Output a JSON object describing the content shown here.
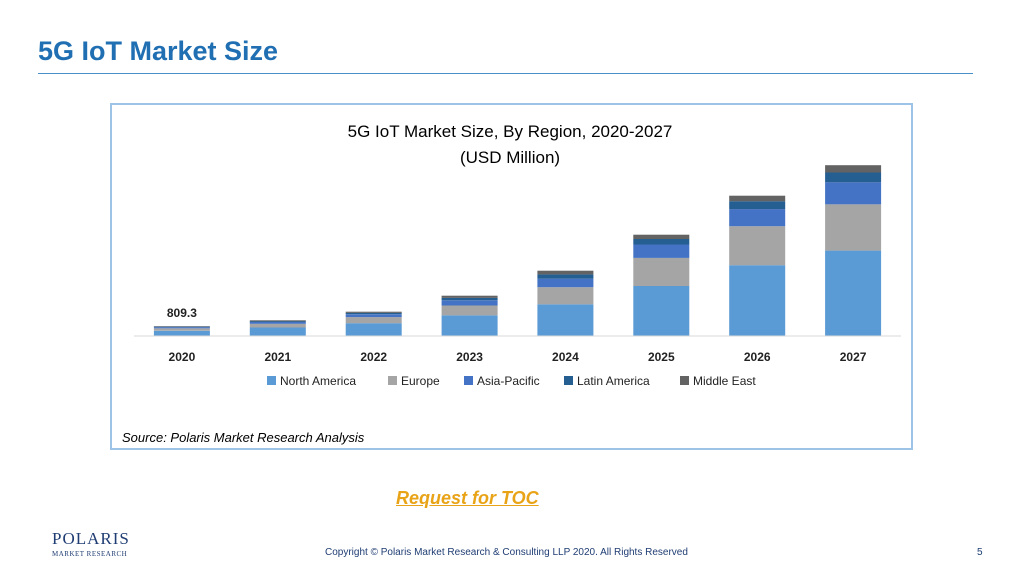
{
  "slide": {
    "title": "5G IoT Market Size",
    "toc_link": "Request for TOC",
    "copyright": "Copyright © Polaris Market Research & Consulting LLP 2020. All Rights Reserved",
    "page_number": "5"
  },
  "logo": {
    "main": "POLARIS",
    "sub": "MARKET RESEARCH"
  },
  "chart_data": {
    "type": "bar",
    "stacked": true,
    "title": "5G IoT Market Size, By Region, 2020-2027",
    "subtitle": "(USD Million)",
    "categories": [
      "2020",
      "2021",
      "2022",
      "2023",
      "2024",
      "2025",
      "2026",
      "2027"
    ],
    "series": [
      {
        "name": "North America",
        "color": "#5b9bd5",
        "values": [
          430,
          700,
          1050,
          1700,
          2600,
          4100,
          5800,
          7000
        ]
      },
      {
        "name": "Europe",
        "color": "#a5a5a5",
        "values": [
          200,
          300,
          500,
          800,
          1400,
          2300,
          3200,
          3800
        ]
      },
      {
        "name": "Asia-Pacific",
        "color": "#4472c4",
        "values": [
          90,
          150,
          230,
          420,
          700,
          1100,
          1400,
          1800
        ]
      },
      {
        "name": "Latin America",
        "color": "#255e91",
        "values": [
          45,
          70,
          110,
          200,
          350,
          450,
          650,
          800
        ]
      },
      {
        "name": "Middle East",
        "color": "#636363",
        "values": [
          44,
          70,
          100,
          180,
          300,
          350,
          450,
          600
        ]
      }
    ],
    "data_labels": [
      {
        "category": "2020",
        "text": "809.3"
      }
    ],
    "ylim": [
      0,
      15000
    ],
    "grid": false,
    "legend": "bottom",
    "source": "Source: Polaris Market Research Analysis"
  }
}
